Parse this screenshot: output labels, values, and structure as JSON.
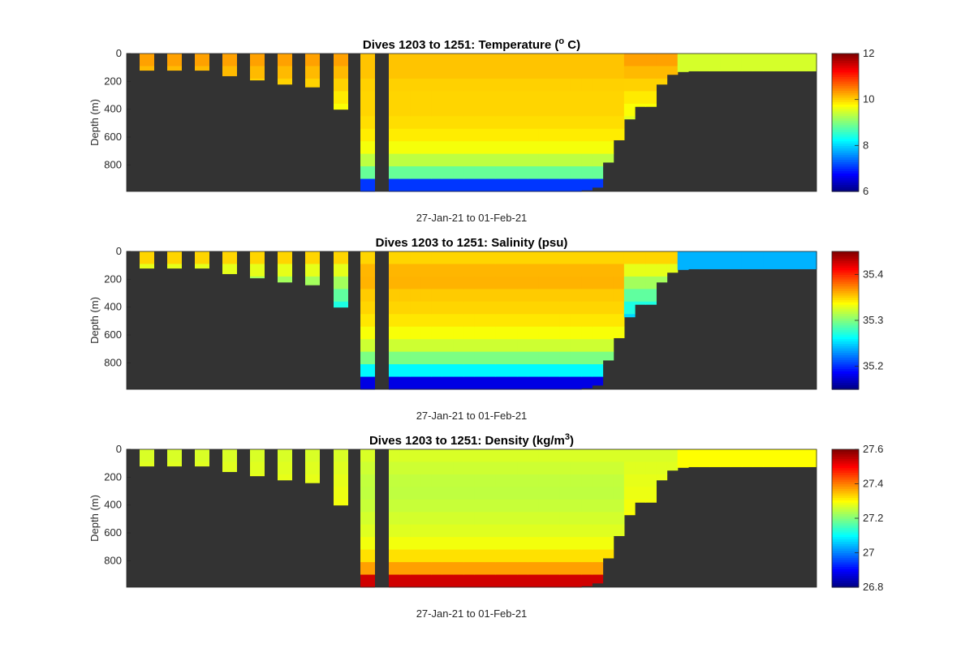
{
  "figure": {
    "background": "#ffffff",
    "seafloor_color": "#333333",
    "colormap": "jet"
  },
  "chart_data": [
    {
      "type": "heatmap",
      "title": "Dives 1203 to 1251: Temperature (",
      "title_superscript": "o",
      "title_suffix": " C)",
      "xlabel": "27-Jan-21 to 01-Feb-21",
      "ylabel": "Depth (m)",
      "y_reversed": true,
      "ylim": [
        0,
        990
      ],
      "yticks": [
        0,
        200,
        400,
        600,
        800
      ],
      "colorbar": {
        "range": [
          6,
          12
        ],
        "ticks": [
          6,
          8,
          10,
          12
        ]
      },
      "dives": {
        "count": 49,
        "first": 1203,
        "last": 1251
      },
      "cast_max_depth": [
        120,
        120,
        120,
        160,
        190,
        220,
        240,
        400,
        990,
        990,
        990,
        990,
        990,
        990,
        990,
        990,
        990,
        990,
        990,
        990,
        990,
        990,
        990,
        990,
        990,
        990,
        990,
        980,
        960,
        780,
        620,
        470,
        380,
        380,
        220,
        150,
        130,
        125,
        125,
        125,
        125,
        125,
        125,
        125,
        125,
        125,
        125,
        125,
        125
      ],
      "surface_value": 10.3,
      "profile_values": [
        10.1,
        10.1,
        10.0,
        10.0,
        10.0,
        9.9,
        9.8,
        9.5,
        9.0,
        8.2,
        7.6
      ],
      "bottom_min": 6.8,
      "shelf_value": 9.5
    },
    {
      "type": "heatmap",
      "title": "Dives 1203 to 1251: Salinity (psu)",
      "xlabel": "27-Jan-21 to 01-Feb-21",
      "ylabel": "Depth (m)",
      "y_reversed": true,
      "ylim": [
        0,
        990
      ],
      "yticks": [
        0,
        200,
        400,
        600,
        800
      ],
      "colorbar": {
        "range": [
          35.15,
          35.45
        ],
        "ticks": [
          35.2,
          35.3,
          35.4
        ]
      },
      "dives": {
        "count": 49,
        "first": 1203,
        "last": 1251
      },
      "cast_max_depth": [
        120,
        120,
        120,
        160,
        190,
        220,
        240,
        400,
        990,
        990,
        990,
        990,
        990,
        990,
        990,
        990,
        990,
        990,
        990,
        990,
        990,
        990,
        990,
        990,
        990,
        990,
        990,
        980,
        960,
        780,
        620,
        470,
        380,
        380,
        220,
        150,
        130,
        125,
        125,
        125,
        125,
        125,
        125,
        125,
        125,
        125,
        125,
        125,
        125
      ],
      "surface_value": 35.35,
      "profile_values": [
        35.35,
        35.36,
        35.36,
        35.35,
        35.35,
        35.34,
        35.33,
        35.31,
        35.27,
        35.22,
        35.19
      ],
      "bottom_min": 35.17,
      "shelf_value": 35.24
    },
    {
      "type": "heatmap",
      "title": "Dives 1203 to 1251: Density (kg/m",
      "title_superscript": "3",
      "title_suffix": ")",
      "xlabel": "27-Jan-21 to 01-Feb-21",
      "ylabel": "Depth (m)",
      "y_reversed": true,
      "ylim": [
        0,
        990
      ],
      "yticks": [
        0,
        200,
        400,
        600,
        800
      ],
      "colorbar": {
        "range": [
          26.8,
          27.6
        ],
        "ticks": [
          26.8,
          27,
          27.2,
          27.4,
          27.6
        ]
      },
      "dives": {
        "count": 49,
        "first": 1203,
        "last": 1251
      },
      "cast_max_depth": [
        120,
        120,
        120,
        160,
        190,
        220,
        240,
        400,
        990,
        990,
        990,
        990,
        990,
        990,
        990,
        990,
        990,
        990,
        990,
        990,
        990,
        990,
        990,
        990,
        990,
        990,
        990,
        980,
        960,
        780,
        620,
        470,
        380,
        380,
        220,
        150,
        130,
        125,
        125,
        125,
        125,
        125,
        125,
        125,
        125,
        125,
        125,
        125,
        125
      ],
      "surface_value": 27.27,
      "profile_values": [
        27.27,
        27.26,
        27.25,
        27.25,
        27.26,
        27.27,
        27.28,
        27.31,
        27.36,
        27.44,
        27.5
      ],
      "bottom_min": 27.56,
      "shelf_value": 27.3
    }
  ]
}
